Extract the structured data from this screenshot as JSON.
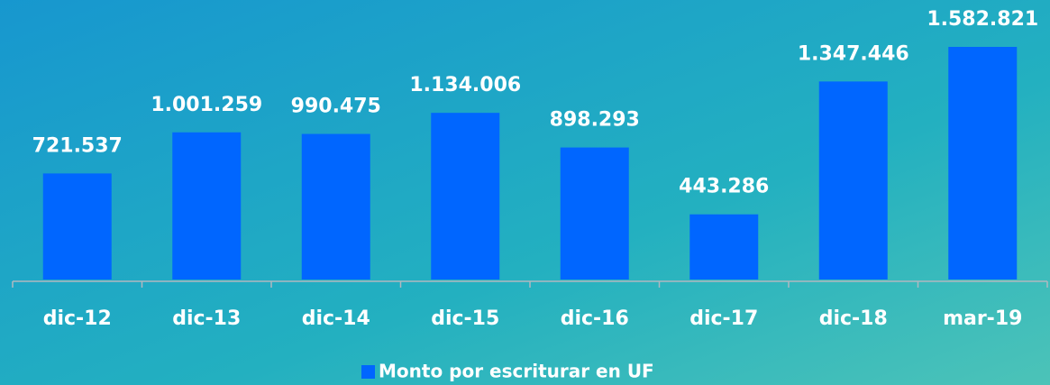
{
  "chart_data": {
    "type": "bar",
    "categories": [
      "dic-12",
      "dic-13",
      "dic-14",
      "dic-15",
      "dic-16",
      "dic-17",
      "dic-18",
      "mar-19"
    ],
    "series": [
      {
        "name": "Monto por escriturar en UF",
        "color": "#0066ff",
        "values": [
          721537,
          1001259,
          990475,
          1134006,
          898293,
          443286,
          1347446,
          1582821
        ],
        "value_labels": [
          "721.537",
          "1.001.259",
          "990.475",
          "1.134.006",
          "898.293",
          "443.286",
          "1.347.446",
          "1.582.821"
        ]
      }
    ],
    "ylim": [
      0,
      1800000
    ],
    "legend": "bottom"
  }
}
